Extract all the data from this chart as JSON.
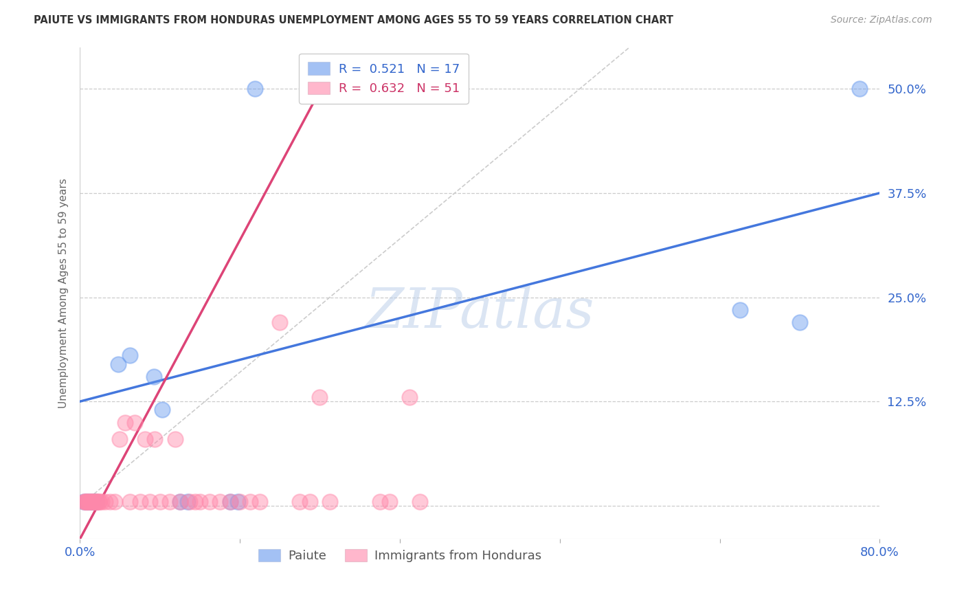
{
  "title": "PAIUTE VS IMMIGRANTS FROM HONDURAS UNEMPLOYMENT AMONG AGES 55 TO 59 YEARS CORRELATION CHART",
  "source": "Source: ZipAtlas.com",
  "ylabel_label": "Unemployment Among Ages 55 to 59 years",
  "xlim": [
    0.0,
    0.8
  ],
  "ylim": [
    -0.04,
    0.55
  ],
  "xticks": [
    0.0,
    0.16,
    0.32,
    0.48,
    0.64,
    0.8
  ],
  "xtick_labels": [
    "0.0%",
    "",
    "",
    "",
    "",
    "80.0%"
  ],
  "ytick_positions": [
    0.0,
    0.125,
    0.25,
    0.375,
    0.5
  ],
  "ytick_labels": [
    "",
    "12.5%",
    "25.0%",
    "37.5%",
    "50.0%"
  ],
  "paiute_color": "#6699ee",
  "honduras_color": "#ff88aa",
  "blue_line_color": "#4477dd",
  "pink_line_color": "#dd4477",
  "diag_line_color": "#cccccc",
  "watermark": "ZIPatlas",
  "paiute_points": [
    [
      0.004,
      0.005
    ],
    [
      0.006,
      0.005
    ],
    [
      0.008,
      0.005
    ],
    [
      0.01,
      0.005
    ],
    [
      0.012,
      0.005
    ],
    [
      0.014,
      0.005
    ],
    [
      0.016,
      0.005
    ],
    [
      0.038,
      0.17
    ],
    [
      0.05,
      0.18
    ],
    [
      0.074,
      0.155
    ],
    [
      0.082,
      0.115
    ],
    [
      0.1,
      0.005
    ],
    [
      0.108,
      0.005
    ],
    [
      0.15,
      0.005
    ],
    [
      0.158,
      0.005
    ],
    [
      0.175,
      0.5
    ],
    [
      0.66,
      0.235
    ],
    [
      0.72,
      0.22
    ],
    [
      0.78,
      0.5
    ]
  ],
  "honduras_points": [
    [
      0.004,
      0.005
    ],
    [
      0.005,
      0.005
    ],
    [
      0.006,
      0.005
    ],
    [
      0.007,
      0.005
    ],
    [
      0.008,
      0.005
    ],
    [
      0.009,
      0.005
    ],
    [
      0.01,
      0.005
    ],
    [
      0.011,
      0.005
    ],
    [
      0.012,
      0.005
    ],
    [
      0.013,
      0.005
    ],
    [
      0.014,
      0.005
    ],
    [
      0.015,
      0.005
    ],
    [
      0.016,
      0.005
    ],
    [
      0.017,
      0.005
    ],
    [
      0.018,
      0.005
    ],
    [
      0.019,
      0.005
    ],
    [
      0.02,
      0.005
    ],
    [
      0.022,
      0.005
    ],
    [
      0.025,
      0.005
    ],
    [
      0.03,
      0.005
    ],
    [
      0.035,
      0.005
    ],
    [
      0.04,
      0.08
    ],
    [
      0.045,
      0.1
    ],
    [
      0.05,
      0.005
    ],
    [
      0.055,
      0.1
    ],
    [
      0.06,
      0.005
    ],
    [
      0.065,
      0.08
    ],
    [
      0.07,
      0.005
    ],
    [
      0.075,
      0.08
    ],
    [
      0.08,
      0.005
    ],
    [
      0.09,
      0.005
    ],
    [
      0.095,
      0.08
    ],
    [
      0.1,
      0.005
    ],
    [
      0.11,
      0.005
    ],
    [
      0.115,
      0.005
    ],
    [
      0.12,
      0.005
    ],
    [
      0.13,
      0.005
    ],
    [
      0.14,
      0.005
    ],
    [
      0.15,
      0.005
    ],
    [
      0.16,
      0.005
    ],
    [
      0.17,
      0.005
    ],
    [
      0.18,
      0.005
    ],
    [
      0.2,
      0.22
    ],
    [
      0.22,
      0.005
    ],
    [
      0.23,
      0.005
    ],
    [
      0.24,
      0.13
    ],
    [
      0.25,
      0.005
    ],
    [
      0.3,
      0.005
    ],
    [
      0.31,
      0.005
    ],
    [
      0.33,
      0.13
    ],
    [
      0.34,
      0.005
    ]
  ],
  "blue_line_x": [
    0.0,
    0.8
  ],
  "blue_line_y": [
    0.125,
    0.375
  ],
  "pink_line_x": [
    0.0,
    0.25
  ],
  "pink_line_y": [
    -0.04,
    0.52
  ],
  "diag_line_x": [
    0.0,
    0.55
  ],
  "diag_line_y": [
    0.0,
    0.55
  ]
}
